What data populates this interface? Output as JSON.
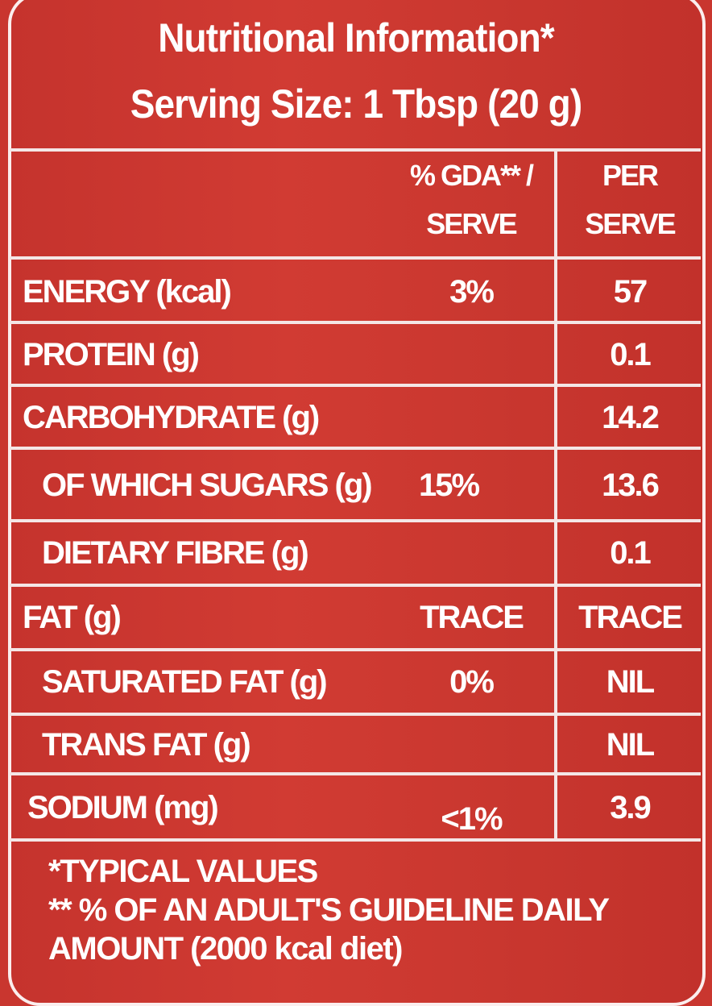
{
  "label": {
    "title": "Nutritional Information*",
    "serving_size": "Serving Size: 1 Tbsp (20 g)",
    "columns": {
      "gda_line1": "% GDA** /",
      "gda_line2": "SERVE",
      "per_line1": "PER",
      "per_line2": "SERVE"
    },
    "rows": [
      {
        "name": "ENERGY (kcal)",
        "gda": "3%",
        "per": "57"
      },
      {
        "name": "PROTEIN (g)",
        "gda": "",
        "per": "0.1"
      },
      {
        "name": "CARBOHYDRATE (g)",
        "gda": "",
        "per": "14.2"
      },
      {
        "name": "OF WHICH SUGARS (g)",
        "gda": "15%",
        "per": "13.6"
      },
      {
        "name": "DIETARY FIBRE (g)",
        "gda": "",
        "per": "0.1"
      },
      {
        "name": "FAT (g)",
        "gda": "TRACE",
        "per": "TRACE"
      },
      {
        "name": "SATURATED FAT (g)",
        "gda": "0%",
        "per": "NIL"
      },
      {
        "name": "TRANS FAT (g)",
        "gda": "",
        "per": "NIL"
      },
      {
        "name": "SODIUM (mg)",
        "gda": "<1%",
        "per": "3.9"
      }
    ],
    "footnotes": [
      "*TYPICAL VALUES",
      "** % OF AN ADULT'S GUIDELINE DAILY",
      "AMOUNT (2000 kcal diet)"
    ],
    "colors": {
      "background": "#c9362f",
      "text": "#ffffff"
    }
  }
}
